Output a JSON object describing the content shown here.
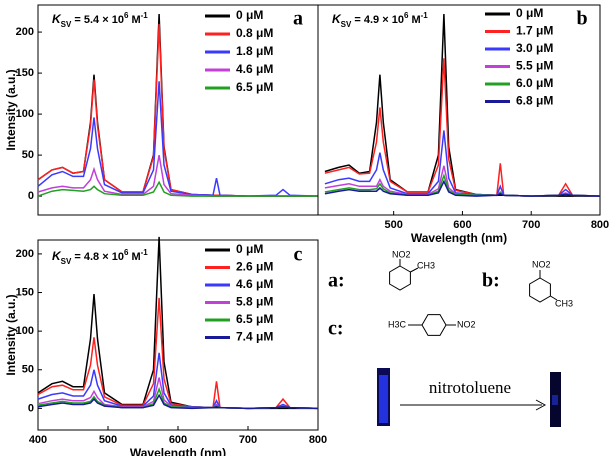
{
  "chart_data": [
    {
      "type": "line",
      "panel_label": "a",
      "annotation": [
        "K",
        "SV",
        " = 5.4 × 10",
        "6",
        " M",
        "-1"
      ],
      "ylabel": "Intensity (a.u.)",
      "xlim": [
        400,
        800
      ],
      "ylim": [
        -23,
        233
      ],
      "yticks": [
        0,
        50,
        100,
        150,
        200
      ],
      "x": [
        400,
        420,
        435,
        450,
        465,
        475,
        480,
        485,
        495,
        520,
        550,
        565,
        573,
        580,
        590,
        620,
        650,
        655,
        660,
        700,
        740,
        750,
        760,
        800
      ],
      "series": [
        {
          "name": "0 μM",
          "color": "#000000",
          "values": [
            20,
            32,
            35,
            28,
            30,
            90,
            148,
            90,
            20,
            5,
            5,
            50,
            222,
            60,
            8,
            2,
            1,
            1,
            1,
            0,
            0,
            0,
            0,
            0
          ]
        },
        {
          "name": "0.8 μM",
          "color": "#ff2020",
          "values": [
            20,
            32,
            35,
            28,
            30,
            86,
            142,
            86,
            20,
            5,
            5,
            48,
            210,
            57,
            8,
            2,
            1,
            1,
            1,
            0,
            0,
            0,
            0,
            0
          ]
        },
        {
          "name": "1.8 μM",
          "color": "#3a3aff",
          "values": [
            12,
            26,
            30,
            24,
            24,
            58,
            96,
            58,
            14,
            4,
            4,
            32,
            140,
            38,
            6,
            2,
            1,
            22,
            1,
            0,
            1,
            8,
            1,
            0
          ]
        },
        {
          "name": "4.6 μM",
          "color": "#c040d8",
          "values": [
            5,
            10,
            12,
            10,
            10,
            20,
            33,
            20,
            6,
            2,
            2,
            12,
            50,
            14,
            3,
            1,
            0,
            0,
            0,
            0,
            0,
            0,
            0,
            0
          ]
        },
        {
          "name": "6.5 μM",
          "color": "#22a022",
          "values": [
            0,
            6,
            8,
            7,
            6,
            8,
            12,
            8,
            3,
            1,
            1,
            5,
            17,
            5,
            1,
            0,
            0,
            0,
            0,
            0,
            0,
            0,
            0,
            0
          ]
        }
      ]
    },
    {
      "type": "line",
      "panel_label": "b",
      "annotation": [
        "K",
        "SV",
        " = 4.9 × 10",
        "6",
        " M",
        "-1"
      ],
      "xlabel": "Wavelength (nm)",
      "xlim": [
        390,
        800
      ],
      "ylim": [
        -23,
        233
      ],
      "xticks": [
        500,
        600,
        700,
        800
      ],
      "x": [
        400,
        420,
        435,
        450,
        465,
        475,
        480,
        485,
        495,
        520,
        550,
        565,
        573,
        580,
        590,
        620,
        650,
        655,
        660,
        700,
        740,
        750,
        760,
        800
      ],
      "series": [
        {
          "name": "0 μM",
          "color": "#000000",
          "values": [
            30,
            35,
            38,
            28,
            30,
            90,
            148,
            90,
            20,
            5,
            5,
            50,
            222,
            60,
            8,
            2,
            1,
            1,
            1,
            0,
            0,
            0,
            0,
            0
          ]
        },
        {
          "name": "1.7 μM",
          "color": "#ff2020",
          "values": [
            28,
            32,
            35,
            27,
            28,
            66,
            108,
            66,
            18,
            5,
            5,
            38,
            168,
            45,
            7,
            2,
            1,
            40,
            1,
            0,
            1,
            15,
            1,
            0
          ]
        },
        {
          "name": "3.0 μM",
          "color": "#3a3aff",
          "values": [
            15,
            20,
            22,
            18,
            18,
            32,
            53,
            32,
            10,
            3,
            3,
            18,
            80,
            22,
            4,
            2,
            1,
            12,
            1,
            0,
            1,
            8,
            1,
            0
          ]
        },
        {
          "name": "5.5 μM",
          "color": "#c040d8",
          "values": [
            10,
            13,
            15,
            12,
            12,
            12,
            20,
            12,
            6,
            2,
            2,
            9,
            37,
            10,
            3,
            1,
            1,
            5,
            1,
            0,
            1,
            4,
            1,
            0
          ]
        },
        {
          "name": "6.0 μM",
          "color": "#22a022",
          "values": [
            5,
            8,
            10,
            8,
            8,
            9,
            15,
            9,
            4,
            1,
            1,
            6,
            25,
            7,
            2,
            1,
            1,
            4,
            1,
            0,
            1,
            3,
            1,
            0
          ]
        },
        {
          "name": "6.8 μM",
          "color": "#1a1a99",
          "values": [
            3,
            6,
            8,
            6,
            6,
            6,
            10,
            6,
            3,
            1,
            1,
            4,
            18,
            5,
            1,
            0,
            1,
            3,
            1,
            0,
            1,
            2,
            1,
            0
          ]
        }
      ]
    },
    {
      "type": "line",
      "panel_label": "c",
      "annotation": [
        "K",
        "SV",
        " = 4.8 × 10",
        "6",
        " M",
        "-1"
      ],
      "ylabel": "Intensity (a.u.)",
      "xlabel": "Wavelength (nm)",
      "xlim": [
        400,
        800
      ],
      "ylim": [
        -28,
        218
      ],
      "xticks": [
        400,
        500,
        600,
        700,
        800
      ],
      "yticks": [
        0,
        50,
        100,
        150,
        200
      ],
      "x": [
        400,
        420,
        435,
        450,
        465,
        475,
        480,
        485,
        495,
        520,
        550,
        565,
        573,
        580,
        590,
        620,
        650,
        655,
        660,
        700,
        740,
        750,
        760,
        800
      ],
      "series": [
        {
          "name": "0 μM",
          "color": "#000000",
          "values": [
            20,
            32,
            35,
            28,
            28,
            90,
            148,
            90,
            20,
            5,
            5,
            50,
            222,
            60,
            8,
            2,
            1,
            1,
            1,
            0,
            0,
            0,
            0,
            0
          ]
        },
        {
          "name": "2.6 μM",
          "color": "#ff2020",
          "values": [
            18,
            28,
            30,
            24,
            24,
            56,
            92,
            56,
            15,
            4,
            4,
            32,
            143,
            38,
            6,
            2,
            1,
            35,
            1,
            0,
            1,
            12,
            1,
            0
          ]
        },
        {
          "name": "4.6 μM",
          "color": "#3a3aff",
          "values": [
            12,
            18,
            20,
            16,
            16,
            30,
            50,
            30,
            10,
            3,
            3,
            16,
            72,
            20,
            4,
            2,
            1,
            10,
            1,
            0,
            1,
            5,
            1,
            0
          ]
        },
        {
          "name": "5.8 μM",
          "color": "#c040d8",
          "values": [
            6,
            10,
            12,
            10,
            10,
            14,
            22,
            14,
            5,
            2,
            2,
            9,
            40,
            11,
            3,
            1,
            1,
            5,
            1,
            0,
            1,
            3,
            1,
            0
          ]
        },
        {
          "name": "6.5 μM",
          "color": "#22a022",
          "values": [
            4,
            7,
            9,
            7,
            7,
            9,
            15,
            9,
            4,
            1,
            1,
            6,
            25,
            7,
            2,
            1,
            1,
            3,
            1,
            0,
            1,
            2,
            1,
            0
          ]
        },
        {
          "name": "7.4 μM",
          "color": "#1a1a99",
          "values": [
            2,
            5,
            7,
            5,
            5,
            7,
            12,
            7,
            3,
            1,
            1,
            4,
            17,
            5,
            1,
            0,
            1,
            2,
            1,
            0,
            1,
            2,
            1,
            0
          ]
        }
      ]
    }
  ],
  "scheme": {
    "a": {
      "label": "a:",
      "groups": [
        "NO2",
        "CH3"
      ]
    },
    "b": {
      "label": "b:",
      "groups": [
        "NO2",
        "CH3"
      ]
    },
    "c": {
      "label": "c:",
      "groups": [
        "H3C",
        "NO2"
      ]
    },
    "arrow_label": "nitrotoluene"
  }
}
